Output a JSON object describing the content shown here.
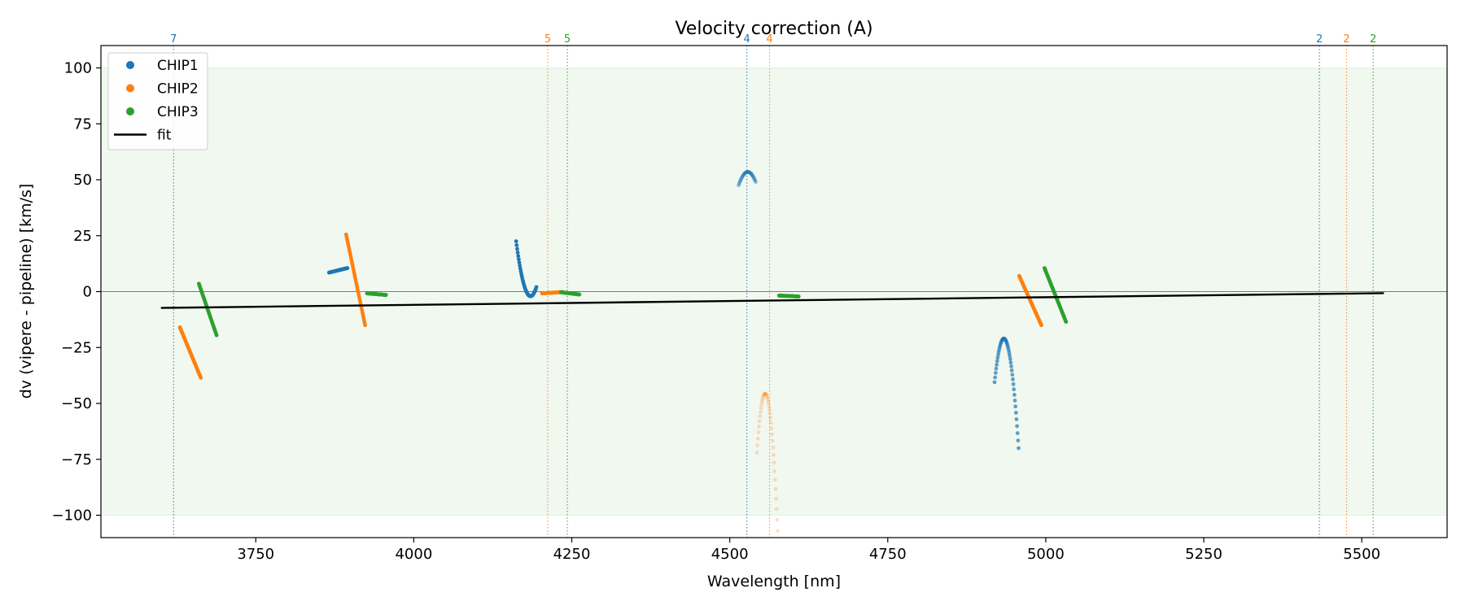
{
  "chart_data": {
    "type": "scatter",
    "title": "Velocity correction (A)",
    "xlabel": "Wavelength [nm]",
    "ylabel": "dv (vipere - pipeline) [km/s]",
    "xlim": [
      3505,
      5635
    ],
    "ylim": [
      -110,
      110
    ],
    "xticks": [
      3750,
      4000,
      4250,
      4500,
      4750,
      5000,
      5250,
      5500
    ],
    "yticks": [
      100,
      75,
      50,
      25,
      0,
      -25,
      -50,
      -75,
      -100
    ],
    "xtick_labels": [
      "3750",
      "4000",
      "4250",
      "4500",
      "4750",
      "5000",
      "5250",
      "5500"
    ],
    "ytick_labels": [
      "100",
      "75",
      "50",
      "25",
      "0",
      "−25",
      "−50",
      "−75",
      "−100"
    ],
    "grid": false,
    "legend_position": "upper-left",
    "shaded_band": {
      "y_from": -100,
      "y_to": 100,
      "color": "#2ca02c"
    },
    "zero_line": 0,
    "colors": {
      "CHIP1": "#1f77b4",
      "CHIP2": "#ff7f0e",
      "CHIP3": "#2ca02c",
      "fit": "#000000"
    },
    "legend": [
      {
        "label": "CHIP1",
        "kind": "marker",
        "color": "#1f77b4"
      },
      {
        "label": "CHIP2",
        "kind": "marker",
        "color": "#ff7f0e"
      },
      {
        "label": "CHIP3",
        "kind": "marker",
        "color": "#2ca02c"
      },
      {
        "label": "fit",
        "kind": "line",
        "color": "#000000"
      }
    ],
    "order_markers": [
      {
        "x": 3620,
        "label": "7",
        "chip": "CHIP1"
      },
      {
        "x": 4212,
        "label": "5",
        "chip": "CHIP2"
      },
      {
        "x": 4243,
        "label": "5",
        "chip": "CHIP3"
      },
      {
        "x": 4527,
        "label": "4",
        "chip": "CHIP1"
      },
      {
        "x": 4563,
        "label": "4",
        "chip": "CHIP2"
      },
      {
        "x": 5433,
        "label": "2",
        "chip": "CHIP1"
      },
      {
        "x": 5476,
        "label": "2",
        "chip": "CHIP2"
      },
      {
        "x": 5518,
        "label": "2",
        "chip": "CHIP3"
      }
    ],
    "fit_line": {
      "x": [
        3600,
        5535
      ],
      "y": [
        -7.3,
        -0.7
      ]
    },
    "series": [
      {
        "name": "CHIP1",
        "segments": [
          {
            "shape": "line",
            "x0": 3866,
            "x1": 3895,
            "y0": 8.5,
            "y1": 10.5,
            "alpha": 1.0
          },
          {
            "shape": "parab",
            "x0": 4162,
            "x1": 4194,
            "ya": -26.5,
            "yb": -6,
            "xm": 4186,
            "ym": -2,
            "alpha": 1.0
          },
          {
            "shape": "parab",
            "x0": 4514,
            "x1": 4541,
            "ya": 59.5,
            "yb": 58,
            "xm": 4528,
            "ym": 53.5,
            "alpha": 0.4
          },
          {
            "shape": "parab",
            "x0": 4919,
            "x1": 4957,
            "ya": -1.5,
            "yb": 28,
            "xm": 4934,
            "ym": -21,
            "alpha": 0.7
          }
        ]
      },
      {
        "name": "CHIP2",
        "segments": [
          {
            "shape": "line",
            "x0": 3630,
            "x1": 3663,
            "y0": -16,
            "y1": -38.5,
            "alpha": 1.0
          },
          {
            "shape": "line",
            "x0": 3893,
            "x1": 3923,
            "y0": 25.5,
            "y1": -15,
            "alpha": 1.0
          },
          {
            "shape": "line",
            "x0": 4203,
            "x1": 4235,
            "y0": -0.8,
            "y1": -0.2,
            "alpha": 1.0
          },
          {
            "shape": "parab",
            "x0": 4543,
            "x1": 4579,
            "ya": -22,
            "yb": 35,
            "xm": 4559,
            "ym": -47,
            "alpha": 0.25
          },
          {
            "shape": "line",
            "x0": 4958,
            "x1": 4993,
            "y0": 7,
            "y1": -15,
            "alpha": 1.0
          }
        ]
      },
      {
        "name": "CHIP3",
        "segments": [
          {
            "shape": "line",
            "x0": 3660,
            "x1": 3688,
            "y0": 3.5,
            "y1": -19.5,
            "alpha": 1.0
          },
          {
            "shape": "line",
            "x0": 3926,
            "x1": 3956,
            "y0": -0.8,
            "y1": -1.5,
            "alpha": 1.0
          },
          {
            "shape": "line",
            "x0": 4233,
            "x1": 4262,
            "y0": -0.3,
            "y1": -1.3,
            "alpha": 1.0
          },
          {
            "shape": "line",
            "x0": 4578,
            "x1": 4609,
            "y0": -1.8,
            "y1": -2.2,
            "alpha": 1.0
          },
          {
            "shape": "line",
            "x0": 4998,
            "x1": 5032,
            "y0": 10.5,
            "y1": -13.5,
            "alpha": 1.0
          }
        ]
      }
    ]
  }
}
